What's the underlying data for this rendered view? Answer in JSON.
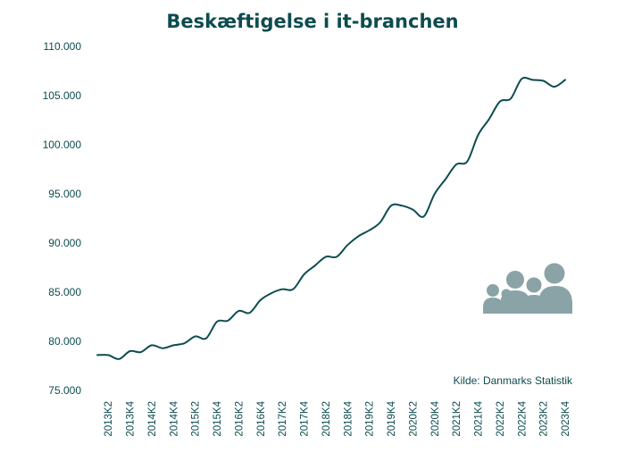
{
  "colors": {
    "line": "#0d4c4f",
    "text": "#0d4c4f",
    "icon": "#8aa3a6",
    "background": "#ffffff"
  },
  "icon": "group-of-people-icon",
  "source": "Kilde: Danmarks Statistik",
  "chart_data": {
    "type": "line",
    "title": "Beskæftigelse i it-branchen",
    "xlabel": "",
    "ylabel": "",
    "ylim": [
      75000,
      110000
    ],
    "yticks": [
      75000,
      80000,
      85000,
      90000,
      95000,
      100000,
      105000,
      110000
    ],
    "ytick_labels": [
      "75.000",
      "80.000",
      "85.000",
      "90.000",
      "95.000",
      "100.000",
      "105.000",
      "110.000"
    ],
    "grid": false,
    "x": [
      "2013K1",
      "2013K2",
      "2013K3",
      "2013K4",
      "2014K1",
      "2014K2",
      "2014K3",
      "2014K4",
      "2015K1",
      "2015K2",
      "2015K3",
      "2015K4",
      "2016K1",
      "2016K2",
      "2016K3",
      "2016K4",
      "2017K1",
      "2017K2",
      "2017K3",
      "2017K4",
      "2018K1",
      "2018K2",
      "2018K3",
      "2018K4",
      "2019K1",
      "2019K2",
      "2019K3",
      "2019K4",
      "2020K1",
      "2020K2",
      "2020K3",
      "2020K4",
      "2021K1",
      "2021K2",
      "2021K3",
      "2021K4",
      "2022K1",
      "2022K2",
      "2022K3",
      "2022K4",
      "2023K1",
      "2023K2",
      "2023K3",
      "2023K4"
    ],
    "xtick_labels": [
      "2013K2",
      "2013K4",
      "2014K2",
      "2014K4",
      "2015K2",
      "2015K4",
      "2016K2",
      "2016K4",
      "2017K2",
      "2017K4",
      "2018K2",
      "2018K4",
      "2019K2",
      "2019K4",
      "2020K2",
      "2020K4",
      "2021K2",
      "2021K4",
      "2022K2",
      "2022K4",
      "2023K2",
      "2023K4"
    ],
    "series": [
      {
        "values": [
          78600,
          78600,
          78200,
          79000,
          78900,
          79600,
          79300,
          79600,
          79800,
          80500,
          80300,
          82000,
          82100,
          83100,
          82900,
          84200,
          84900,
          85300,
          85300,
          86800,
          87700,
          88600,
          88600,
          89800,
          90700,
          91300,
          92100,
          93800,
          93800,
          93400,
          92700,
          95000,
          96500,
          98000,
          98300,
          101000,
          102600,
          104400,
          104700,
          106700,
          106600,
          106500,
          105900,
          106600
        ]
      }
    ]
  }
}
